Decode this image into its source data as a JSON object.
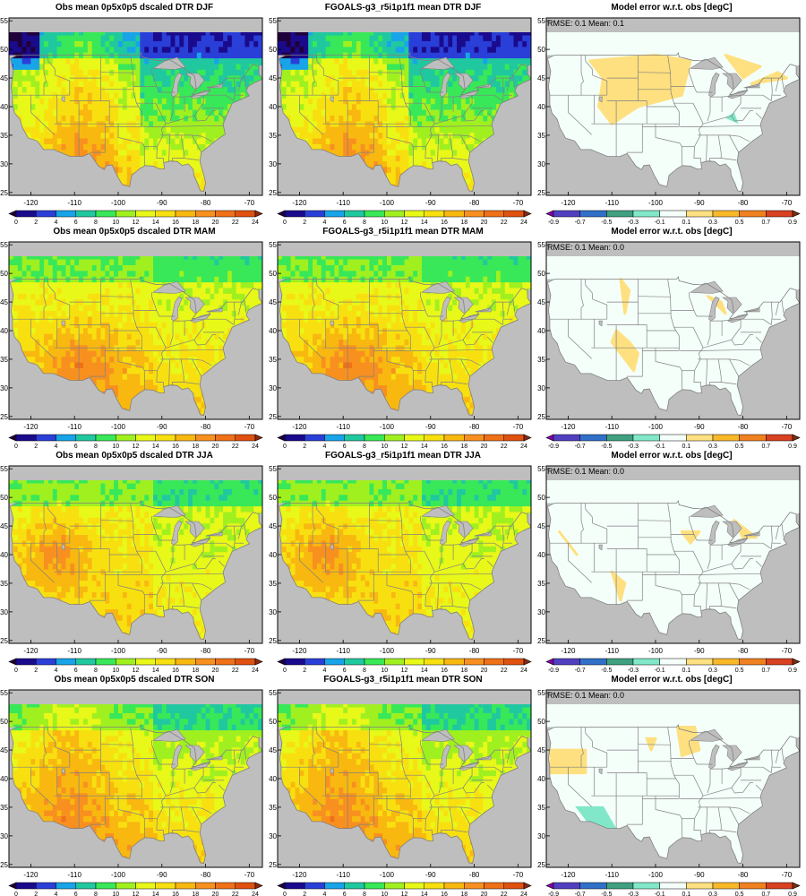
{
  "seasons": [
    "DJF",
    "MAM",
    "JJA",
    "SON"
  ],
  "titles": {
    "obs": [
      "Obs mean 0p5x0p5 dscaled DTR DJF",
      "Obs mean 0p5x0p5 dscaled DTR MAM",
      "Obs mean 0p5x0p5 dscaled DTR JJA",
      "Obs mean 0p5x0p5 dscaled DTR SON"
    ],
    "model": [
      "FGOALS-g3_r5i1p1f1 mean DTR DJF",
      "FGOALS-g3_r5i1p1f1 mean DTR MAM",
      "FGOALS-g3_r5i1p1f1 mean DTR JJA",
      "FGOALS-g3_r5i1p1f1 mean DTR SON"
    ],
    "error": [
      "Model error w.r.t. obs [degC]",
      "Model error w.r.t. obs [degC]",
      "Model error w.r.t. obs [degC]",
      "Model error w.r.t. obs [degC]"
    ]
  },
  "stats": [
    "RMSE: 0.1  Mean: 0.1",
    "RMSE: 0.1  Mean: 0.0",
    "RMSE: 0.1  Mean: 0.0",
    "RMSE: 0.1  Mean: 0.0"
  ],
  "axes": {
    "lon_ticks": [
      "-120",
      "-110",
      "-100",
      "-90",
      "-80",
      "-70"
    ],
    "lat_ticks": [
      "55",
      "50",
      "45",
      "40",
      "35",
      "30",
      "25"
    ],
    "lon_range": [
      -125,
      -67
    ],
    "lat_range": [
      24.5,
      55.5
    ]
  },
  "colorbars": {
    "dtr": {
      "labels": [
        "0",
        "2",
        "4",
        "6",
        "8",
        "10",
        "12",
        "14",
        "16",
        "18",
        "20",
        "22",
        "24"
      ],
      "colors": [
        "#20003a",
        "#1a0a8c",
        "#2a3fd8",
        "#18a4e8",
        "#20c8a0",
        "#38e858",
        "#a0f020",
        "#e8f818",
        "#f8e010",
        "#f8b810",
        "#f89020",
        "#f07018",
        "#e05010",
        "#8a2a10"
      ]
    },
    "error": {
      "labels": [
        "-0.9",
        "-0.7",
        "-0.5",
        "-0.3",
        "-0.1",
        "0.1",
        "0.3",
        "0.5",
        "0.7",
        "0.9"
      ],
      "colors": [
        "#8800aa",
        "#5040c0",
        "#3070c8",
        "#40a080",
        "#80e8c8",
        "#f4fffa",
        "#ffe080",
        "#f8b828",
        "#f08020",
        "#d84020",
        "#7a3010"
      ]
    }
  },
  "colors": {
    "ocean": "#bebebe",
    "outside_domain": "#bebebe",
    "border": "#808080",
    "lake": "#bebebe"
  }
}
